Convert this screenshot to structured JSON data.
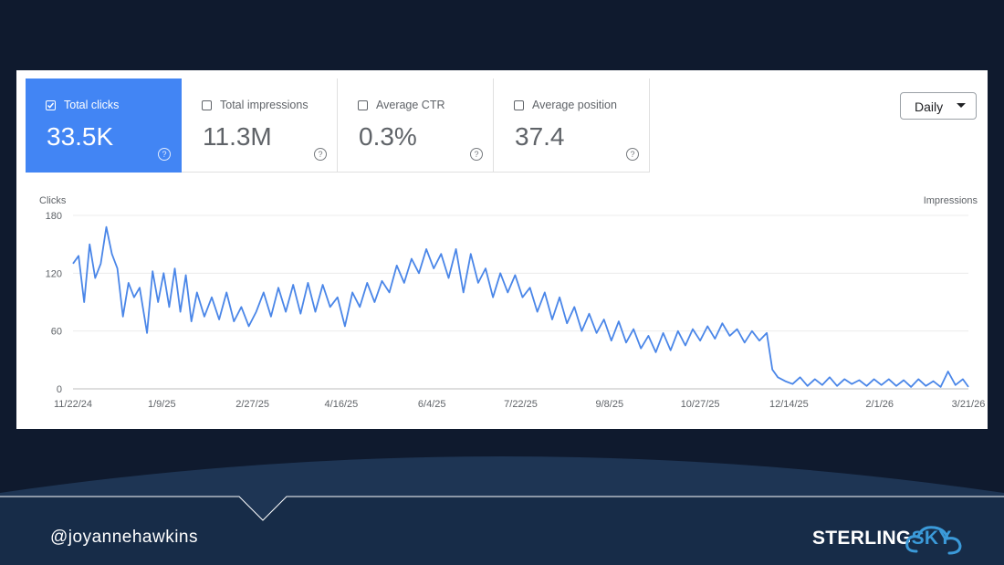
{
  "tiles": [
    {
      "label": "Total clicks",
      "value": "33.5K",
      "active": true
    },
    {
      "label": "Total impressions",
      "value": "11.3M",
      "active": false
    },
    {
      "label": "Average CTR",
      "value": "0.3%",
      "active": false
    },
    {
      "label": "Average position",
      "value": "37.4",
      "active": false
    }
  ],
  "help_glyph": "?",
  "range_select": {
    "value": "Daily"
  },
  "footer": {
    "handle": "@joyannehawkins",
    "logo_part1": "STERLING",
    "logo_part2": "SKY"
  },
  "colors": {
    "accent": "#4285f4",
    "line": "#4a86e8",
    "background": "#0f1a2e",
    "logo_sky": "#3b9ad9"
  },
  "chart_data": {
    "type": "line",
    "ylabel": "Clicks",
    "y2label": "Impressions",
    "ylim": [
      0,
      180
    ],
    "yticks": [
      "180",
      "120",
      "60",
      "0"
    ],
    "ytick_values": [
      180,
      120,
      60,
      0
    ],
    "x_tick_labels": [
      "11/22/24",
      "1/9/25",
      "2/27/25",
      "4/16/25",
      "6/4/25",
      "7/22/25",
      "9/8/25",
      "10/27/25",
      "12/14/25",
      "2/1/26",
      "3/21/26"
    ],
    "x_tick_dates": [
      "2024-11-22",
      "2025-01-09",
      "2025-02-27",
      "2025-04-16",
      "2025-06-04",
      "2025-07-22",
      "2025-09-08",
      "2025-10-27",
      "2025-12-14",
      "2026-02-01",
      "2026-03-21"
    ],
    "grid": true,
    "series": [
      {
        "values_by_date": [
          [
            "2024-11-22",
            130
          ],
          [
            "2024-11-25",
            138
          ],
          [
            "2024-11-28",
            90
          ],
          [
            "2024-12-01",
            150
          ],
          [
            "2024-12-04",
            115
          ],
          [
            "2024-12-07",
            130
          ],
          [
            "2024-12-10",
            168
          ],
          [
            "2024-12-13",
            140
          ],
          [
            "2024-12-16",
            125
          ],
          [
            "2024-12-19",
            75
          ],
          [
            "2024-12-22",
            110
          ],
          [
            "2024-12-25",
            95
          ],
          [
            "2024-12-28",
            105
          ],
          [
            "2025-01-01",
            58
          ],
          [
            "2025-01-04",
            122
          ],
          [
            "2025-01-07",
            90
          ],
          [
            "2025-01-10",
            120
          ],
          [
            "2025-01-13",
            85
          ],
          [
            "2025-01-16",
            125
          ],
          [
            "2025-01-19",
            80
          ],
          [
            "2025-01-22",
            118
          ],
          [
            "2025-01-25",
            70
          ],
          [
            "2025-01-28",
            100
          ],
          [
            "2025-02-01",
            75
          ],
          [
            "2025-02-05",
            95
          ],
          [
            "2025-02-09",
            72
          ],
          [
            "2025-02-13",
            100
          ],
          [
            "2025-02-17",
            70
          ],
          [
            "2025-02-21",
            85
          ],
          [
            "2025-02-25",
            65
          ],
          [
            "2025-03-01",
            80
          ],
          [
            "2025-03-05",
            100
          ],
          [
            "2025-03-09",
            75
          ],
          [
            "2025-03-13",
            105
          ],
          [
            "2025-03-17",
            80
          ],
          [
            "2025-03-21",
            108
          ],
          [
            "2025-03-25",
            78
          ],
          [
            "2025-03-29",
            110
          ],
          [
            "2025-04-02",
            80
          ],
          [
            "2025-04-06",
            108
          ],
          [
            "2025-04-10",
            85
          ],
          [
            "2025-04-14",
            95
          ],
          [
            "2025-04-18",
            65
          ],
          [
            "2025-04-22",
            100
          ],
          [
            "2025-04-26",
            85
          ],
          [
            "2025-04-30",
            110
          ],
          [
            "2025-05-04",
            90
          ],
          [
            "2025-05-08",
            112
          ],
          [
            "2025-05-12",
            100
          ],
          [
            "2025-05-16",
            128
          ],
          [
            "2025-05-20",
            110
          ],
          [
            "2025-05-24",
            135
          ],
          [
            "2025-05-28",
            120
          ],
          [
            "2025-06-01",
            145
          ],
          [
            "2025-06-05",
            125
          ],
          [
            "2025-06-09",
            140
          ],
          [
            "2025-06-13",
            115
          ],
          [
            "2025-06-17",
            145
          ],
          [
            "2025-06-21",
            100
          ],
          [
            "2025-06-25",
            140
          ],
          [
            "2025-06-29",
            110
          ],
          [
            "2025-07-03",
            125
          ],
          [
            "2025-07-07",
            95
          ],
          [
            "2025-07-11",
            120
          ],
          [
            "2025-07-15",
            100
          ],
          [
            "2025-07-19",
            118
          ],
          [
            "2025-07-23",
            95
          ],
          [
            "2025-07-27",
            105
          ],
          [
            "2025-07-31",
            80
          ],
          [
            "2025-08-04",
            100
          ],
          [
            "2025-08-08",
            72
          ],
          [
            "2025-08-12",
            95
          ],
          [
            "2025-08-16",
            68
          ],
          [
            "2025-08-20",
            85
          ],
          [
            "2025-08-24",
            60
          ],
          [
            "2025-08-28",
            78
          ],
          [
            "2025-09-01",
            58
          ],
          [
            "2025-09-05",
            72
          ],
          [
            "2025-09-09",
            50
          ],
          [
            "2025-09-13",
            70
          ],
          [
            "2025-09-17",
            48
          ],
          [
            "2025-09-21",
            62
          ],
          [
            "2025-09-25",
            42
          ],
          [
            "2025-09-29",
            55
          ],
          [
            "2025-10-03",
            38
          ],
          [
            "2025-10-07",
            58
          ],
          [
            "2025-10-11",
            40
          ],
          [
            "2025-10-15",
            60
          ],
          [
            "2025-10-19",
            45
          ],
          [
            "2025-10-23",
            62
          ],
          [
            "2025-10-27",
            50
          ],
          [
            "2025-10-31",
            65
          ],
          [
            "2025-11-04",
            52
          ],
          [
            "2025-11-08",
            68
          ],
          [
            "2025-11-12",
            55
          ],
          [
            "2025-11-16",
            62
          ],
          [
            "2025-11-20",
            48
          ],
          [
            "2025-11-24",
            60
          ],
          [
            "2025-11-28",
            50
          ],
          [
            "2025-12-02",
            58
          ],
          [
            "2025-12-05",
            20
          ],
          [
            "2025-12-08",
            12
          ],
          [
            "2025-12-12",
            8
          ],
          [
            "2025-12-16",
            5
          ],
          [
            "2025-12-20",
            12
          ],
          [
            "2025-12-24",
            3
          ],
          [
            "2025-12-28",
            10
          ],
          [
            "2026-01-01",
            4
          ],
          [
            "2026-01-05",
            12
          ],
          [
            "2026-01-09",
            3
          ],
          [
            "2026-01-13",
            10
          ],
          [
            "2026-01-17",
            5
          ],
          [
            "2026-01-21",
            9
          ],
          [
            "2026-01-25",
            3
          ],
          [
            "2026-01-29",
            10
          ],
          [
            "2026-02-02",
            4
          ],
          [
            "2026-02-06",
            10
          ],
          [
            "2026-02-10",
            3
          ],
          [
            "2026-02-14",
            9
          ],
          [
            "2026-02-18",
            2
          ],
          [
            "2026-02-22",
            10
          ],
          [
            "2026-02-26",
            3
          ],
          [
            "2026-03-02",
            8
          ],
          [
            "2026-03-06",
            2
          ],
          [
            "2026-03-10",
            18
          ],
          [
            "2026-03-14",
            4
          ],
          [
            "2026-03-18",
            10
          ],
          [
            "2026-03-21",
            2
          ]
        ]
      }
    ]
  }
}
